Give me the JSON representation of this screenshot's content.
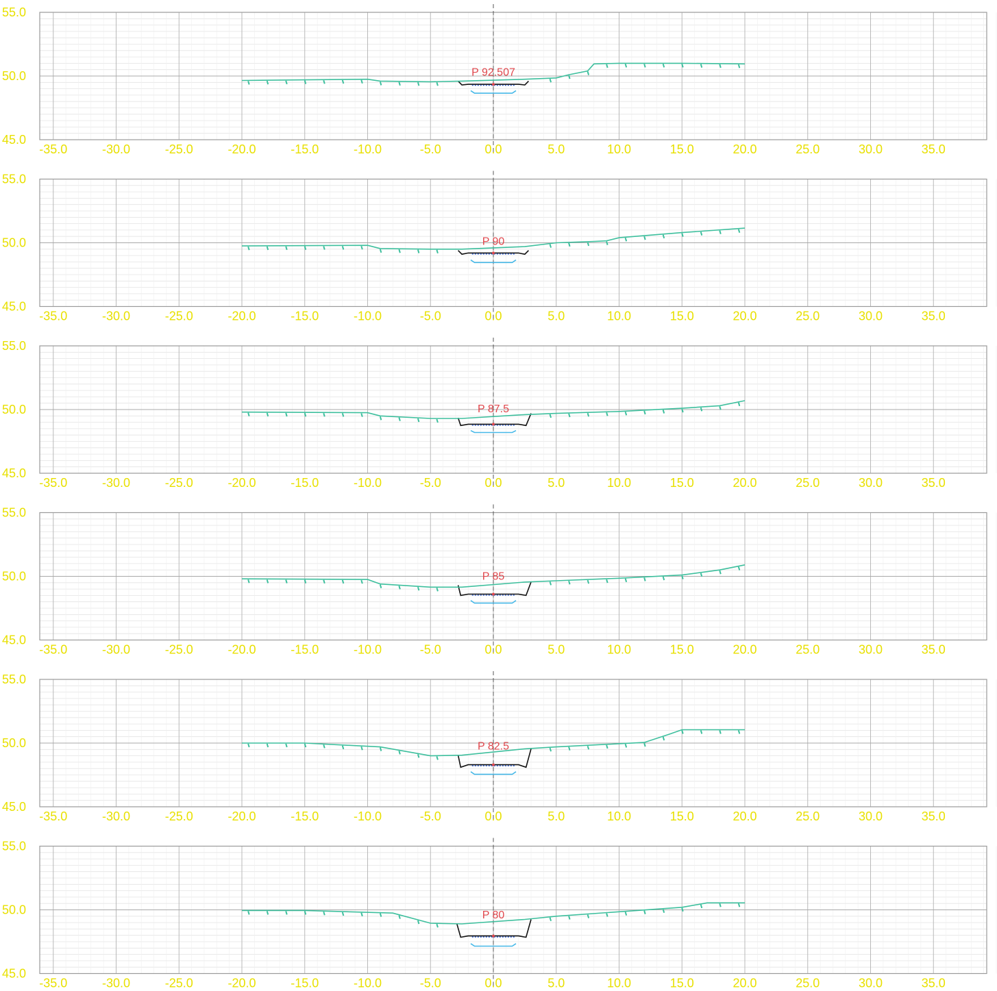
{
  "chart_data": [
    {
      "type": "line",
      "station_label": "P 92.507",
      "xlim": [
        -35,
        40
      ],
      "ylim": [
        45,
        55
      ],
      "x_ticks": [
        "-35.0",
        "-30.0",
        "-25.0",
        "-20.0",
        "-15.0",
        "-10.0",
        "-5.0",
        "0.0",
        "5.0",
        "10.0",
        "15.0",
        "20.0",
        "25.0",
        "30.0",
        "35.0"
      ],
      "y_ticks": [
        "45.0",
        "50.0",
        "55.0"
      ],
      "grid": true,
      "ground": {
        "x": [
          -20,
          -10,
          -9,
          -5,
          -2.5,
          2.5,
          5,
          6,
          7.5,
          8,
          10,
          15,
          20
        ],
        "y": [
          49.65,
          49.75,
          49.6,
          49.55,
          49.6,
          49.75,
          49.85,
          50.1,
          50.4,
          50.95,
          51.0,
          51.0,
          50.95
        ]
      },
      "section": {
        "x": [
          -2.8,
          -2.5,
          -2.0,
          2.0,
          2.5,
          2.8
        ],
        "y": [
          49.6,
          49.3,
          49.35,
          49.35,
          49.3,
          49.6
        ]
      },
      "bed": {
        "x": [
          -1.8,
          -1.5,
          1.5,
          1.8
        ],
        "y": [
          48.85,
          48.65,
          48.65,
          48.85
        ]
      }
    },
    {
      "type": "line",
      "station_label": "P 90",
      "xlim": [
        -35,
        40
      ],
      "ylim": [
        45,
        55
      ],
      "x_ticks": [
        "-35.0",
        "-30.0",
        "-25.0",
        "-20.0",
        "-15.0",
        "-10.0",
        "-5.0",
        "0.0",
        "5.0",
        "10.0",
        "15.0",
        "20.0",
        "25.0",
        "30.0",
        "35.0"
      ],
      "y_ticks": [
        "45.0",
        "50.0",
        "55.0"
      ],
      "grid": true,
      "ground": {
        "x": [
          -20,
          -10,
          -9,
          -5,
          -2.5,
          2.5,
          5,
          8,
          9,
          10,
          15,
          20
        ],
        "y": [
          49.75,
          49.8,
          49.55,
          49.5,
          49.5,
          49.7,
          50.0,
          50.1,
          50.15,
          50.4,
          50.8,
          51.15
        ]
      },
      "section": {
        "x": [
          -2.8,
          -2.5,
          -2.0,
          2.0,
          2.5,
          2.8
        ],
        "y": [
          49.4,
          49.1,
          49.2,
          49.2,
          49.1,
          49.4
        ]
      },
      "bed": {
        "x": [
          -1.8,
          -1.5,
          1.5,
          1.8
        ],
        "y": [
          48.65,
          48.45,
          48.45,
          48.65
        ]
      }
    },
    {
      "type": "line",
      "station_label": "P 87.5",
      "xlim": [
        -35,
        40
      ],
      "ylim": [
        45,
        55
      ],
      "x_ticks": [
        "-35.0",
        "-30.0",
        "-25.0",
        "-20.0",
        "-15.0",
        "-10.0",
        "-5.0",
        "0.0",
        "5.0",
        "10.0",
        "15.0",
        "20.0",
        "25.0",
        "30.0",
        "35.0"
      ],
      "y_ticks": [
        "45.0",
        "50.0",
        "55.0"
      ],
      "grid": true,
      "ground": {
        "x": [
          -20,
          -10,
          -9,
          -5,
          -2.5,
          2.5,
          5,
          10,
          15,
          18,
          20
        ],
        "y": [
          49.8,
          49.75,
          49.5,
          49.3,
          49.3,
          49.6,
          49.7,
          49.85,
          50.1,
          50.3,
          50.7
        ]
      },
      "section": {
        "x": [
          -2.8,
          -2.6,
          -2.0,
          2.0,
          2.6,
          3.0
        ],
        "y": [
          49.35,
          48.75,
          48.85,
          48.85,
          48.75,
          49.7
        ]
      },
      "bed": {
        "x": [
          -1.8,
          -1.5,
          1.5,
          1.8
        ],
        "y": [
          48.35,
          48.2,
          48.2,
          48.35
        ]
      }
    },
    {
      "type": "line",
      "station_label": "P 85",
      "xlim": [
        -35,
        40
      ],
      "ylim": [
        45,
        55
      ],
      "x_ticks": [
        "-35.0",
        "-30.0",
        "-25.0",
        "-20.0",
        "-15.0",
        "-10.0",
        "-5.0",
        "0.0",
        "5.0",
        "10.0",
        "15.0",
        "20.0",
        "25.0",
        "30.0",
        "35.0"
      ],
      "y_ticks": [
        "45.0",
        "50.0",
        "55.0"
      ],
      "grid": true,
      "ground": {
        "x": [
          -20,
          -10,
          -9,
          -5,
          -2.5,
          2.5,
          5,
          10,
          15,
          18,
          20
        ],
        "y": [
          49.8,
          49.75,
          49.4,
          49.15,
          49.15,
          49.55,
          49.65,
          49.85,
          50.1,
          50.5,
          50.9
        ]
      },
      "section": {
        "x": [
          -2.8,
          -2.6,
          -2.0,
          2.0,
          2.6,
          3.0
        ],
        "y": [
          49.3,
          48.5,
          48.6,
          48.6,
          48.5,
          49.55
        ]
      },
      "bed": {
        "x": [
          -1.8,
          -1.5,
          1.5,
          1.8
        ],
        "y": [
          48.1,
          47.9,
          47.9,
          48.1
        ]
      }
    },
    {
      "type": "line",
      "station_label": "P 82.5",
      "xlim": [
        -35,
        40
      ],
      "ylim": [
        45,
        55
      ],
      "x_ticks": [
        "-35.0",
        "-30.0",
        "-25.0",
        "-20.0",
        "-15.0",
        "-10.0",
        "-5.0",
        "0.0",
        "5.0",
        "10.0",
        "15.0",
        "20.0",
        "25.0",
        "30.0",
        "35.0"
      ],
      "y_ticks": [
        "45.0",
        "50.0",
        "55.0"
      ],
      "grid": true,
      "ground": {
        "x": [
          -20,
          -15,
          -9,
          -5,
          -2.5,
          2.5,
          5,
          10,
          12,
          14,
          15,
          20
        ],
        "y": [
          50.0,
          50.0,
          49.7,
          49.0,
          49.05,
          49.55,
          49.7,
          49.95,
          50.05,
          50.7,
          51.05,
          51.05
        ]
      },
      "section": {
        "x": [
          -2.8,
          -2.6,
          -2.0,
          2.0,
          2.6,
          3.0
        ],
        "y": [
          49.05,
          48.1,
          48.3,
          48.3,
          48.1,
          49.55
        ]
      },
      "bed": {
        "x": [
          -1.8,
          -1.5,
          1.5,
          1.8
        ],
        "y": [
          47.75,
          47.55,
          47.55,
          47.75
        ]
      }
    },
    {
      "type": "line",
      "station_label": "P 80",
      "xlim": [
        -35,
        40
      ],
      "ylim": [
        45,
        55
      ],
      "x_ticks": [
        "-35.0",
        "-30.0",
        "-25.0",
        "-20.0",
        "-15.0",
        "-10.0",
        "-5.0",
        "0.0",
        "5.0",
        "10.0",
        "15.0",
        "20.0",
        "25.0",
        "30.0",
        "35.0"
      ],
      "y_ticks": [
        "45.0",
        "50.0",
        "55.0"
      ],
      "grid": true,
      "ground": {
        "x": [
          -20,
          -15,
          -8,
          -5,
          -2.5,
          2.5,
          5,
          10,
          15,
          17,
          20
        ],
        "y": [
          49.95,
          49.95,
          49.75,
          48.95,
          48.9,
          49.25,
          49.5,
          49.85,
          50.2,
          50.55,
          50.55
        ]
      },
      "section": {
        "x": [
          -2.9,
          -2.6,
          -2.0,
          2.0,
          2.6,
          3.0
        ],
        "y": [
          48.9,
          47.85,
          47.95,
          47.95,
          47.85,
          49.25
        ]
      },
      "bed": {
        "x": [
          -1.8,
          -1.5,
          1.5,
          1.8
        ],
        "y": [
          47.35,
          47.15,
          47.15,
          47.35
        ]
      }
    }
  ]
}
